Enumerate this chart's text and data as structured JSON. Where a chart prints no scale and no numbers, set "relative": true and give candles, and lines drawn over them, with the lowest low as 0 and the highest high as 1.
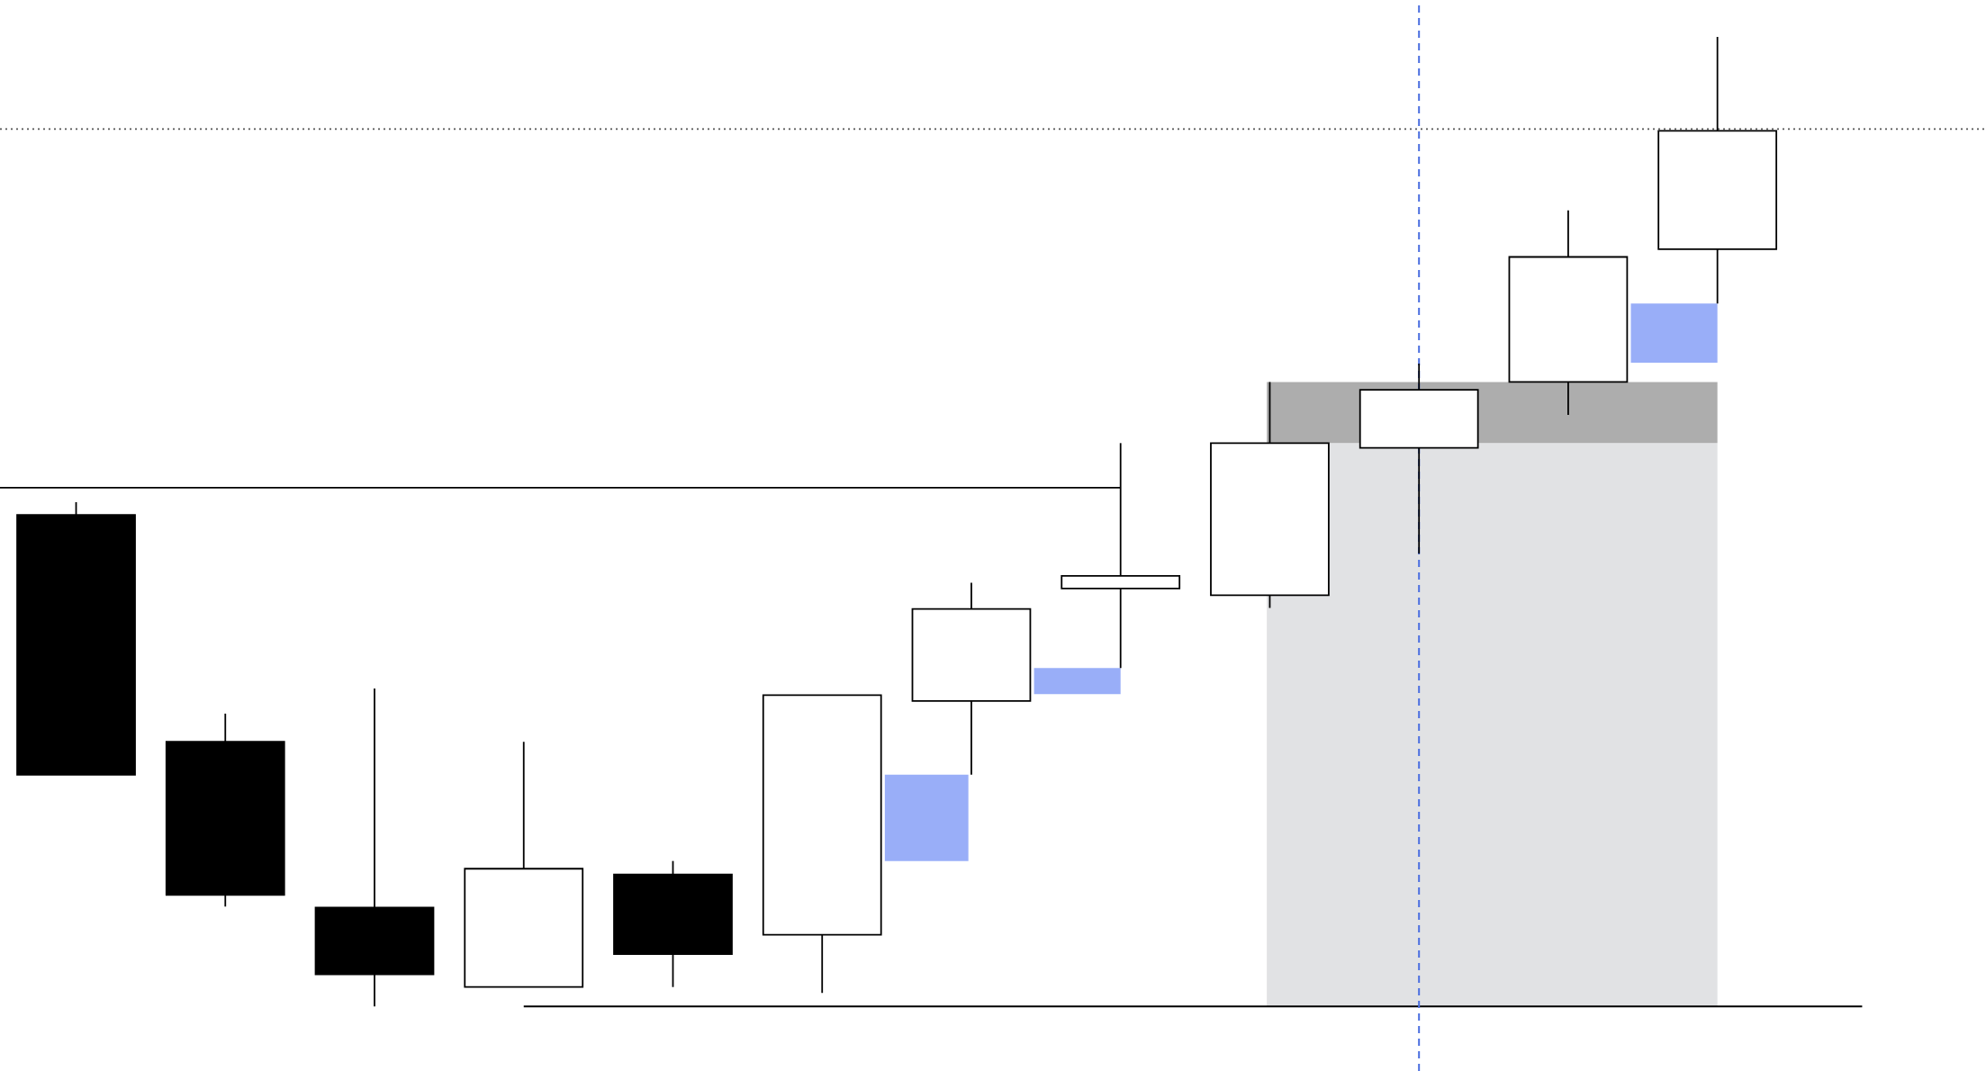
{
  "chart_data": {
    "type": "candlestick",
    "relative": true,
    "categories": [
      null,
      null,
      null,
      null,
      null,
      null,
      null,
      null,
      null,
      null,
      null,
      null
    ],
    "ohlc": [
      [
        0.507,
        0.52,
        0.239,
        0.239
      ],
      [
        0.273,
        0.302,
        0.103,
        0.115
      ],
      [
        0.102,
        0.328,
        0,
        0.033
      ],
      [
        0.02,
        0.273,
        0.02,
        0.142
      ],
      [
        0.136,
        0.15,
        0.02,
        0.054
      ],
      [
        0.074,
        0.321,
        0.014,
        0.321
      ],
      [
        0.315,
        0.437,
        0.239,
        0.41
      ],
      [
        0.431,
        0.581,
        0.349,
        0.444
      ],
      [
        0.424,
        0.644,
        0.411,
        0.581
      ],
      [
        0.576,
        0.663,
        0.467,
        0.636
      ],
      [
        0.644,
        0.821,
        0.61,
        0.773
      ],
      [
        0.781,
        1,
        0.725,
        0.903
      ]
    ],
    "bands": [
      {
        "axis": "y",
        "from": 0,
        "to": 0.581,
        "color": "#e1e2e4"
      },
      {
        "axis": "y",
        "from": 0.581,
        "to": 0.644,
        "color": "#adadad"
      },
      {
        "axis": "y",
        "from": 0.15,
        "to": 0.239,
        "color": "#99aef8"
      },
      {
        "axis": "y",
        "from": 0.322,
        "to": 0.349,
        "color": "#99aef8"
      },
      {
        "axis": "y",
        "from": 0.664,
        "to": 0.725,
        "color": "#99aef8"
      }
    ],
    "ref_lines": [
      {
        "axis": "y",
        "value": 0.905,
        "color": "#555555",
        "line_style": "dotted"
      },
      {
        "axis": "y",
        "value": 0.535,
        "color": "#000000",
        "line_style": "solid"
      },
      {
        "axis": "y",
        "value": 0,
        "color": "#000000",
        "line_style": "solid"
      }
    ]
  }
}
